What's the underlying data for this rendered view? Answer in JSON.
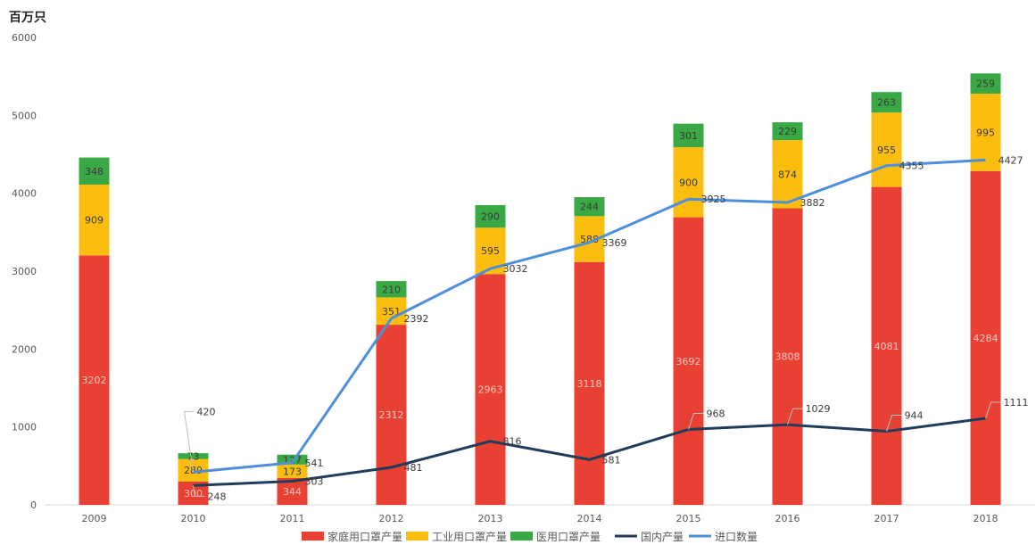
{
  "chart_data": {
    "type": "bar",
    "unit_label": "百万只",
    "categories": [
      "2009",
      "2010",
      "2011",
      "2012",
      "2013",
      "2014",
      "2015",
      "2016",
      "2017",
      "2018"
    ],
    "ylim": [
      0,
      6000
    ],
    "yticks": [
      "0",
      "1000",
      "2000",
      "3000",
      "4000",
      "5000",
      "6000"
    ],
    "series": [
      {
        "name": "家庭用口罩产量",
        "kind": "bar",
        "color": "#e84032",
        "values": [
          3202,
          300,
          344,
          2312,
          2963,
          3118,
          3692,
          3808,
          4081,
          4284
        ]
      },
      {
        "name": "工业用口罩产量",
        "kind": "bar",
        "color": "#fcbe0e",
        "values": [
          909,
          289,
          173,
          351,
          595,
          588,
          900,
          874,
          955,
          995
        ]
      },
      {
        "name": "医用口罩产量",
        "kind": "bar",
        "color": "#39a845",
        "values": [
          348,
          73,
          127,
          210,
          290,
          244,
          301,
          229,
          263,
          259
        ]
      },
      {
        "name": "国内产量",
        "kind": "line",
        "color": "#213c5a",
        "values": [
          null,
          248,
          303,
          481,
          816,
          581,
          968,
          1029,
          944,
          1111
        ]
      },
      {
        "name": "进口数量",
        "kind": "line",
        "color": "#4e8fdc",
        "values": [
          null,
          420,
          541,
          2392,
          3032,
          3369,
          3925,
          3882,
          4355,
          4427
        ]
      }
    ],
    "line_labels": {
      "国内产量": [
        "",
        "248",
        "303",
        "481",
        "816",
        "581",
        "968",
        "1029",
        "944",
        "1111"
      ],
      "进口数量": [
        "",
        "420",
        "541",
        "2392",
        "3032",
        "3369",
        "3925",
        "3882",
        "4355",
        "4427"
      ]
    },
    "legend_position": "bottom",
    "grid": false
  }
}
